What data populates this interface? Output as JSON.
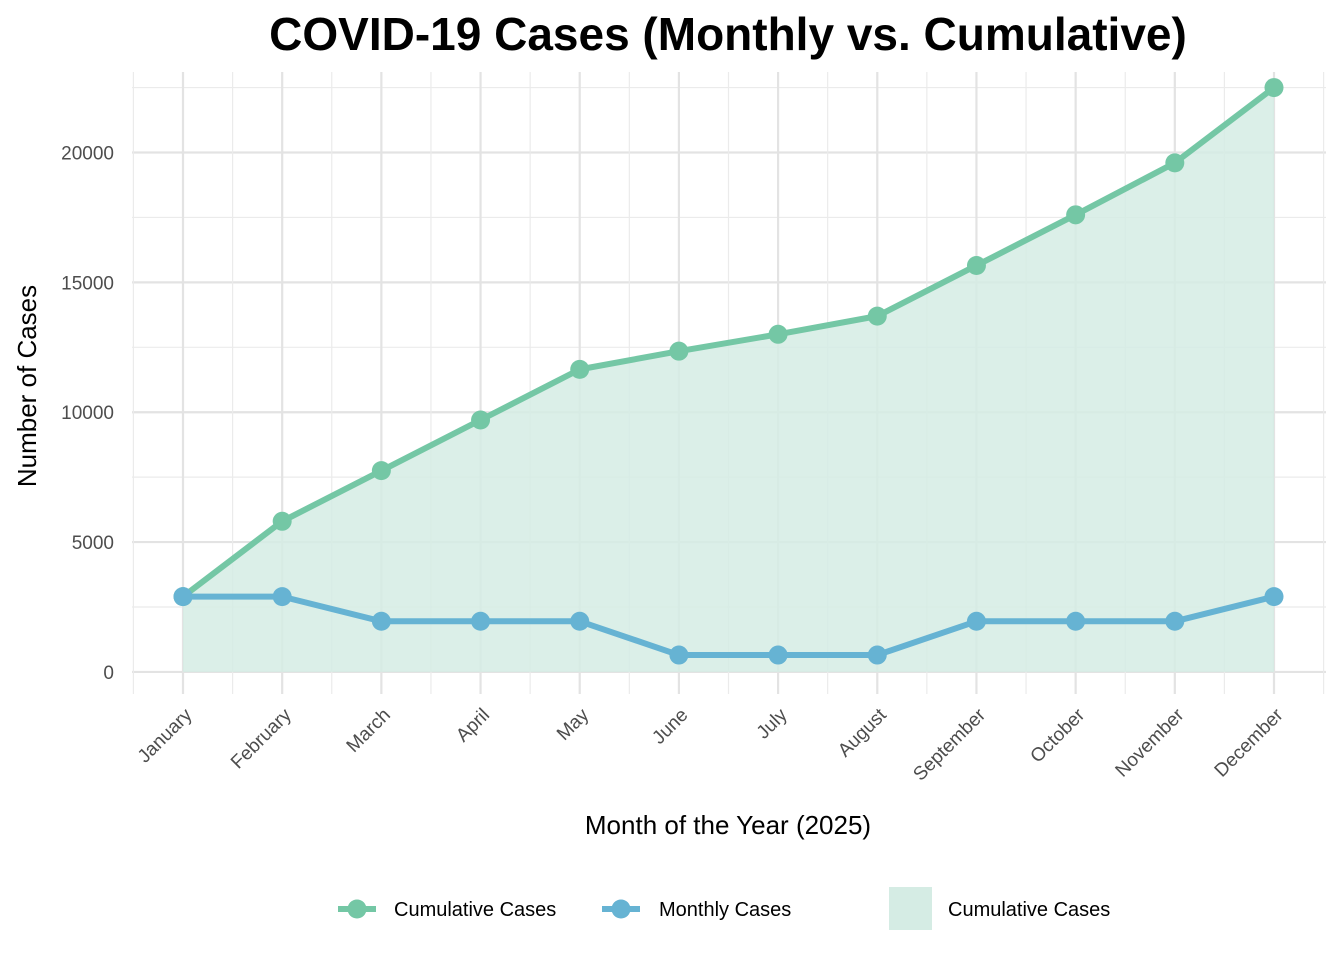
{
  "chart_data": {
    "type": "line",
    "title": "COVID-19 Cases (Monthly vs. Cumulative)",
    "xlabel": "Month of the Year (2025)",
    "ylabel": "Number of Cases",
    "categories": [
      "January",
      "February",
      "March",
      "April",
      "May",
      "June",
      "July",
      "August",
      "September",
      "October",
      "November",
      "December"
    ],
    "ylim": [
      -850,
      23100
    ],
    "yticks": [
      0,
      5000,
      10000,
      15000,
      20000
    ],
    "grid": true,
    "legend_position": "bottom",
    "series": [
      {
        "name": "Cumulative Cases",
        "kind": "line+points+area",
        "color": "#74c7a5",
        "area_color": "#d5ece4",
        "values": [
          2900,
          5800,
          7750,
          9700,
          11650,
          12350,
          13000,
          13700,
          15650,
          17600,
          19600,
          22500
        ]
      },
      {
        "name": "Monthly Cases",
        "kind": "line+points",
        "color": "#66b3d3",
        "values": [
          2900,
          2900,
          1950,
          1950,
          1950,
          650,
          650,
          650,
          1950,
          1950,
          1950,
          2900
        ]
      }
    ],
    "legend": [
      {
        "label": "Cumulative Cases",
        "type": "line-point",
        "color": "#74c7a5"
      },
      {
        "label": "Monthly Cases",
        "type": "line-point",
        "color": "#66b3d3"
      },
      {
        "label": "Cumulative Cases",
        "type": "fill",
        "color": "#d5ece4"
      }
    ]
  }
}
